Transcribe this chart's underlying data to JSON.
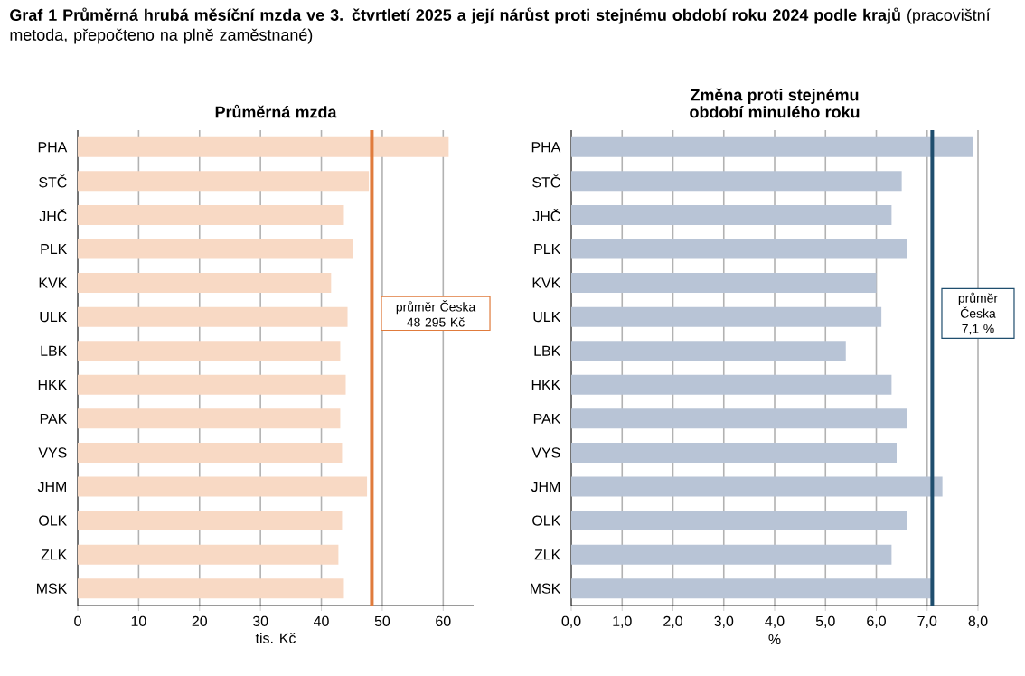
{
  "chart_data": [
    {
      "type": "bar",
      "orientation": "horizontal",
      "title": "Průměrná mzda",
      "xlabel": "tis. Kč",
      "annotations": [
        "**Graf 1 Průměrná hrubá měsíční mzda ve 3. čtvrtletí 2025 a její nárůst proti stejnému období roku 2024 podle krajů** (pracovištní metoda, přepočteno na plně zaměstnané)"
      ],
      "categories": [
        "PHA",
        "STČ",
        "JHČ",
        "PLK",
        "KVK",
        "ULK",
        "LBK",
        "HKK",
        "PAK",
        "VYS",
        "JHM",
        "OLK",
        "ZLK",
        "MSK"
      ],
      "values": [
        60.9,
        47.8,
        43.7,
        45.2,
        41.6,
        44.3,
        43.1,
        44.0,
        43.1,
        43.4,
        47.5,
        43.4,
        42.8,
        43.7
      ],
      "color": "#f8d9c4",
      "xlim": [
        0,
        65
      ],
      "xticks": [
        0,
        10,
        20,
        30,
        40,
        50,
        60
      ],
      "grid": "x",
      "ref_lines": [
        {
          "axis": "x",
          "value": 48.295,
          "label": "průměr Česka 48 295 Kč",
          "color": "#e07b3c"
        }
      ]
    },
    {
      "type": "bar",
      "orientation": "horizontal",
      "title": "Změna proti stejnému období minulého roku",
      "xlabel": "%",
      "categories": [
        "PHA",
        "STČ",
        "JHČ",
        "PLK",
        "KVK",
        "ULK",
        "LBK",
        "HKK",
        "PAK",
        "VYS",
        "JHM",
        "OLK",
        "ZLK",
        "MSK"
      ],
      "values": [
        7.9,
        6.5,
        6.3,
        6.6,
        6.0,
        6.1,
        5.4,
        6.3,
        6.6,
        6.4,
        7.3,
        6.6,
        6.3,
        7.1
      ],
      "color": "#b8c4d6",
      "xlim": [
        0,
        8
      ],
      "xticks": [
        {
          "value": 0,
          "label": "0,0"
        },
        {
          "value": 1,
          "label": "1,0"
        },
        {
          "value": 2,
          "label": "2,0"
        },
        {
          "value": 3,
          "label": "3,0"
        },
        {
          "value": 4,
          "label": "4,0"
        },
        {
          "value": 5,
          "label": "5,0"
        },
        {
          "value": 6,
          "label": "6,0"
        },
        {
          "value": 7,
          "label": "7,0"
        },
        {
          "value": 8,
          "label": "8,0"
        }
      ],
      "grid": "x",
      "ref_lines": [
        {
          "axis": "x",
          "value": 7.1,
          "label": "průměr Česka 7,1 %",
          "color": "#1f4e6e"
        }
      ]
    }
  ]
}
